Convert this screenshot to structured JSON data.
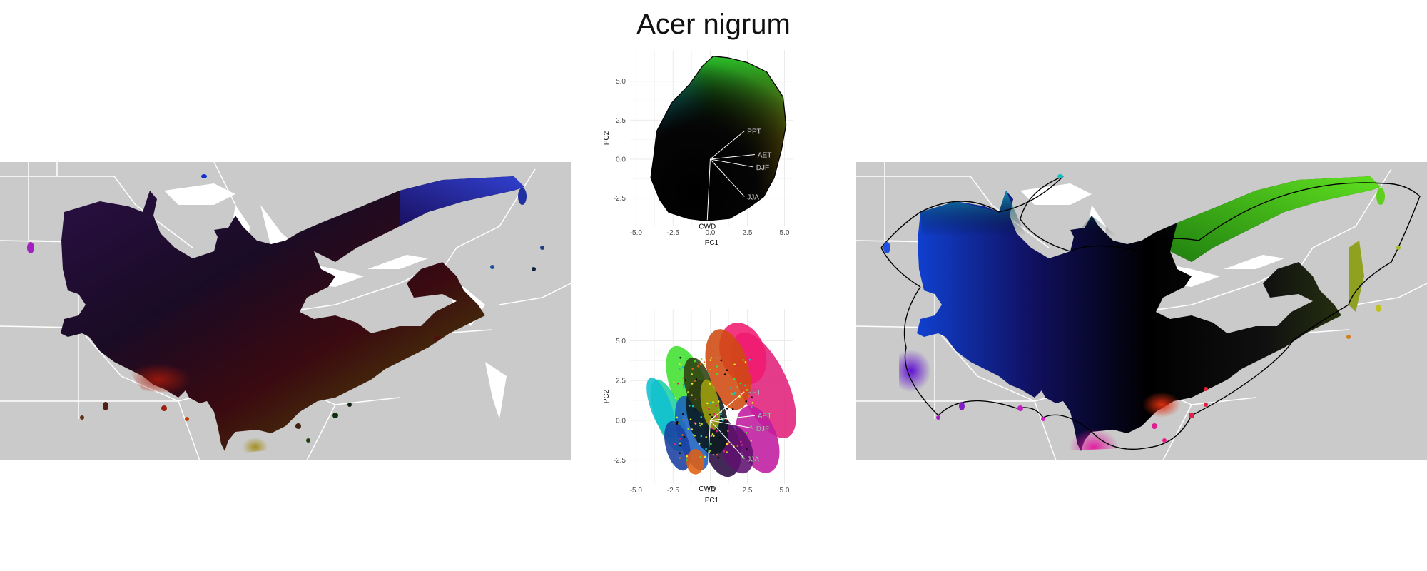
{
  "figure": {
    "title": "Acer nigrum"
  },
  "chart_data": [
    {
      "type": "scatter",
      "panel": "pca-top",
      "xlabel": "PC1",
      "ylabel": "PC2",
      "xticks": [
        -5.0,
        -2.5,
        0.0,
        2.5,
        5.0
      ],
      "yticks": [
        -2.5,
        0.0,
        2.5,
        5.0
      ],
      "xtick_labels": [
        "-5.0",
        "-2.5",
        "0.0",
        "2.5",
        "5.0"
      ],
      "ytick_labels": [
        "-2.5",
        "0.0",
        "2.5",
        "5.0"
      ],
      "xlim": [
        -5.4,
        5.6
      ],
      "ylim": [
        -4.3,
        7.0
      ],
      "grid": true,
      "loadings": [
        {
          "label": "PPT",
          "x": 2.3,
          "y": 1.8
        },
        {
          "label": "AET",
          "x": 3.0,
          "y": 0.3
        },
        {
          "label": "DJF",
          "x": 2.9,
          "y": -0.5
        },
        {
          "label": "JJA",
          "x": 2.3,
          "y": -2.4
        },
        {
          "label": "CWD",
          "x": -0.2,
          "y": -3.9
        }
      ]
    },
    {
      "type": "scatter",
      "panel": "pca-bottom",
      "xlabel": "PC1",
      "ylabel": "PC2",
      "xticks": [
        -5.0,
        -2.5,
        0.0,
        2.5,
        5.0
      ],
      "yticks": [
        -2.5,
        0.0,
        2.5,
        5.0
      ],
      "xtick_labels": [
        "-5.0",
        "-2.5",
        "0.0",
        "2.5",
        "5.0"
      ],
      "ytick_labels": [
        "-2.5",
        "0.0",
        "2.5",
        "5.0"
      ],
      "xlim": [
        -5.4,
        5.6
      ],
      "ylim": [
        -4.0,
        7.0
      ],
      "grid": true,
      "loadings": [
        {
          "label": "PPT",
          "x": 2.3,
          "y": 1.8
        },
        {
          "label": "AET",
          "x": 3.0,
          "y": 0.3
        },
        {
          "label": "DJF",
          "x": 2.9,
          "y": -0.5
        },
        {
          "label": "JJA",
          "x": 2.3,
          "y": -2.4
        },
        {
          "label": "CWD",
          "x": -0.2,
          "y": -3.9
        }
      ]
    }
  ],
  "colors": {
    "map_background": "#cacaca",
    "border": "#ffffff",
    "grid": "#ebebeb",
    "text": "#4d4d4d"
  }
}
